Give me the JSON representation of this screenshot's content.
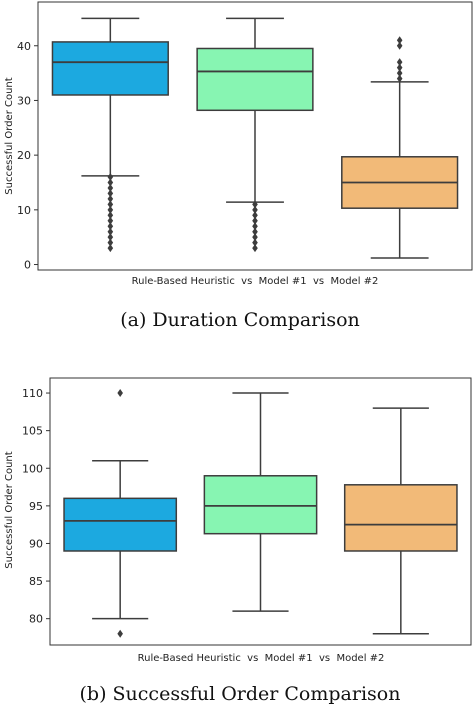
{
  "figure": {
    "captions": [
      "(a) Duration Comparison",
      "(b) Successful Order Comparison"
    ]
  },
  "chart_data": [
    {
      "type": "box",
      "xlabel": "Rule-Based Heuristic  vs  Model #1  vs  Model #2",
      "ylabel": "Successful Order Count",
      "ylim": [
        -1,
        48
      ],
      "yticks": [
        0,
        10,
        20,
        30,
        40
      ],
      "grid": false,
      "boxes": [
        {
          "color": "#1ca9e0",
          "whisker_low": 16.2,
          "q1": 31,
          "median": 37,
          "q3": 40.7,
          "whisker_high": 45,
          "outliers": [
            3,
            4,
            5,
            6,
            7,
            8,
            9,
            10,
            11,
            12,
            13,
            14,
            15,
            16
          ]
        },
        {
          "color": "#87f5b2",
          "whisker_low": 11.4,
          "q1": 28.2,
          "median": 35.3,
          "q3": 39.5,
          "whisker_high": 45,
          "outliers": [
            3,
            4,
            5,
            6,
            7,
            8,
            9,
            10,
            11
          ]
        },
        {
          "color": "#f2ba78",
          "whisker_low": 1.2,
          "q1": 10.3,
          "median": 15,
          "q3": 19.7,
          "whisker_high": 33.4,
          "outliers": [
            34,
            35,
            36,
            37,
            40,
            41
          ]
        }
      ]
    },
    {
      "type": "box",
      "xlabel": "Rule-Based Heuristic  vs  Model #1  vs  Model #2",
      "ylabel": "Successful Order Count",
      "ylim": [
        76.5,
        112
      ],
      "yticks": [
        80,
        85,
        90,
        95,
        100,
        105,
        110
      ],
      "grid": false,
      "boxes": [
        {
          "color": "#1ca9e0",
          "whisker_low": 80,
          "q1": 89,
          "median": 93,
          "q3": 96,
          "whisker_high": 101,
          "outliers": [
            78,
            110
          ]
        },
        {
          "color": "#87f5b2",
          "whisker_low": 81,
          "q1": 91.3,
          "median": 95,
          "q3": 99,
          "whisker_high": 110,
          "outliers": []
        },
        {
          "color": "#f2ba78",
          "whisker_low": 78,
          "q1": 89,
          "median": 92.5,
          "q3": 97.8,
          "whisker_high": 108,
          "outliers": []
        }
      ]
    }
  ]
}
